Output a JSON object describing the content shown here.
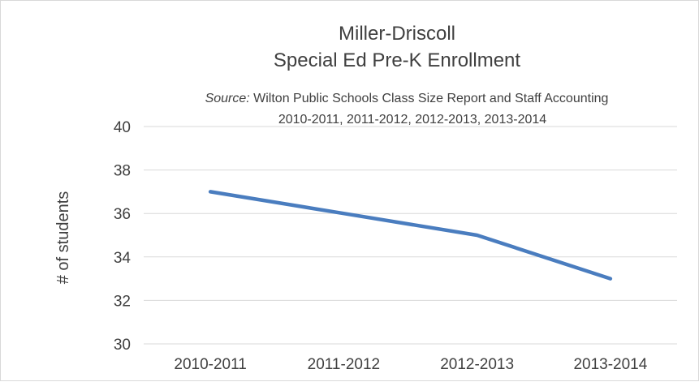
{
  "chart_data": {
    "type": "line",
    "title_lines": [
      "Miller-Driscoll",
      "Special Ed Pre-K Enrollment"
    ],
    "source_label": "Source:",
    "source_text": " Wilton Public Schools Class Size Report and Staff Accounting",
    "source_years": "2010-2011, 2011-2012, 2012-2013, 2013-2014",
    "categories": [
      "2010-2011",
      "2011-2012",
      "2012-2013",
      "2013-2014"
    ],
    "series": [
      {
        "values": [
          37,
          36,
          35,
          33
        ],
        "color": "#4a7dbf"
      }
    ],
    "xlabel": "",
    "ylabel": "# of students",
    "ylim": [
      30,
      40
    ],
    "yticks": [
      30,
      32,
      34,
      36,
      38,
      40
    ],
    "grid": true,
    "legend": "none"
  }
}
